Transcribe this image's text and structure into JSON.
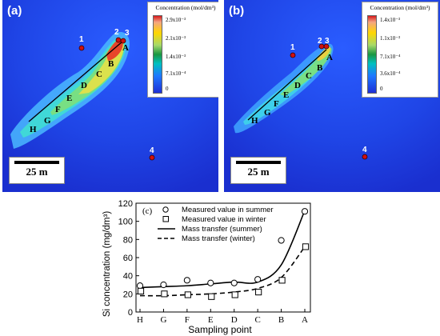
{
  "panels": [
    {
      "letter": "(a)",
      "legend_title": "Concentration (mol/dm³)",
      "legend_ticks": [
        "2.9x10⁻³",
        "2.1x10⁻³",
        "1.4x10⁻³",
        "7.1x10⁻⁴",
        "0"
      ],
      "scale_label": "25 m",
      "points": [
        "1",
        "2",
        "3",
        "4"
      ],
      "section_labels": [
        "A",
        "B",
        "C",
        "D",
        "E",
        "F",
        "G",
        "H"
      ]
    },
    {
      "letter": "(b)",
      "legend_title": "Concentration (mol/dm³)",
      "legend_ticks": [
        "1.4x10⁻³",
        "1.1x10⁻³",
        "7.1x10⁻⁴",
        "3.6x10⁻⁴",
        "0"
      ],
      "scale_label": "25 m",
      "points": [
        "1",
        "2",
        "3",
        "4"
      ],
      "section_labels": [
        "A",
        "B",
        "C",
        "D",
        "E",
        "F",
        "G",
        "H"
      ]
    }
  ],
  "chart_data": {
    "type": "line",
    "panel_label": "(c)",
    "xlabel": "Sampling point",
    "ylabel": "Si concentration (mg/dm³)",
    "categories": [
      "H",
      "G",
      "F",
      "E",
      "D",
      "C",
      "B",
      "A"
    ],
    "ylim": [
      0,
      120
    ],
    "yticks": [
      "0",
      "20",
      "40",
      "60",
      "80",
      "100",
      "120"
    ],
    "grid": false,
    "legend_position": "top-left",
    "series": [
      {
        "name": "Measured value in summer",
        "kind": "marker",
        "marker": "circle",
        "values": [
          29,
          30,
          35,
          32,
          32,
          36,
          79,
          111
        ]
      },
      {
        "name": "Measured value in winter",
        "kind": "marker",
        "marker": "square",
        "values": [
          23,
          20,
          19,
          17,
          19,
          22,
          35,
          72
        ]
      },
      {
        "name": "Mass transfer (summer)",
        "kind": "line",
        "dash": "solid",
        "values": [
          27,
          28,
          29,
          31,
          33,
          33,
          52,
          112
        ]
      },
      {
        "name": "Mass transfer (winter)",
        "kind": "line",
        "dash": "dashed",
        "values": [
          18,
          18,
          19,
          20,
          22,
          26,
          38,
          72
        ]
      }
    ]
  }
}
